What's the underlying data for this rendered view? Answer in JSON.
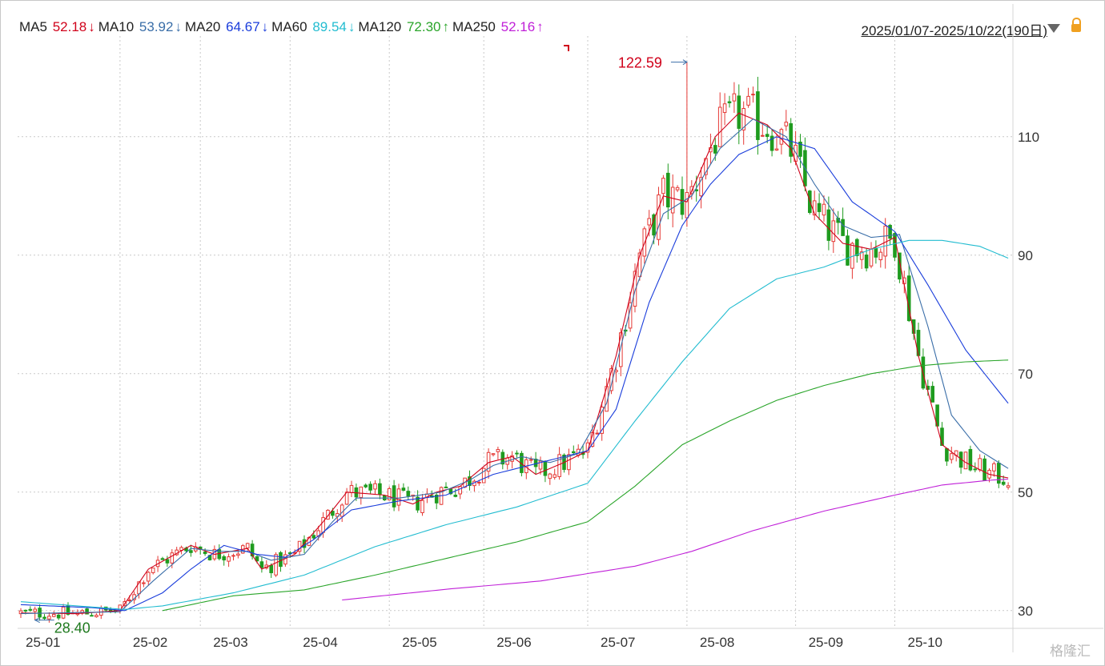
{
  "ma_legend": [
    {
      "label": "MA5",
      "value": "52.18",
      "arrow": "↓",
      "color": "#d0021b"
    },
    {
      "label": "MA10",
      "value": "53.92",
      "arrow": "↓",
      "color": "#3a6ea8"
    },
    {
      "label": "MA20",
      "value": "64.67",
      "arrow": "↓",
      "color": "#1a3ddb"
    },
    {
      "label": "MA60",
      "value": "89.54",
      "arrow": "↓",
      "color": "#22bcd0"
    },
    {
      "label": "MA120",
      "value": "72.30",
      "arrow": "↑",
      "color": "#2aa52a"
    },
    {
      "label": "MA250",
      "value": "52.16",
      "arrow": "↑",
      "color": "#c020d8"
    }
  ],
  "date_range": "2025/01/07-2025/10/22(190日)",
  "watermark": "格隆汇",
  "icons": {
    "dropdown": "triangle-down-icon",
    "lock": "lock-icon"
  },
  "chart_data": {
    "type": "candlestick",
    "ylim": [
      27,
      127
    ],
    "y_ticks": [
      30,
      50,
      70,
      90,
      110
    ],
    "x_ticks": [
      "25-01",
      "25-02",
      "25-03",
      "25-04",
      "25-05",
      "25-06",
      "25-07",
      "25-08",
      "25-09",
      "25-10"
    ],
    "annotations": {
      "max": "122.59",
      "min": "28.40"
    },
    "ma_lines": {
      "MA5": [
        [
          0,
          29.6
        ],
        [
          12,
          29.5
        ],
        [
          21,
          30
        ],
        [
          27,
          37
        ],
        [
          36,
          41
        ],
        [
          41,
          39.5
        ],
        [
          48,
          40.5
        ],
        [
          51,
          37
        ],
        [
          58,
          39.5
        ],
        [
          64,
          45
        ],
        [
          69,
          50
        ],
        [
          77,
          49.5
        ],
        [
          83,
          48
        ],
        [
          88,
          50
        ],
        [
          93,
          51
        ],
        [
          99,
          55
        ],
        [
          104,
          56
        ],
        [
          109,
          53
        ],
        [
          115,
          55
        ],
        [
          120,
          57
        ],
        [
          126,
          73
        ],
        [
          131,
          90
        ],
        [
          136,
          100
        ],
        [
          141,
          99
        ],
        [
          147,
          110
        ],
        [
          152,
          114
        ],
        [
          158,
          112
        ],
        [
          163,
          108
        ],
        [
          168,
          97
        ],
        [
          174,
          92
        ],
        [
          180,
          91
        ],
        [
          185,
          93
        ],
        [
          190,
          73
        ],
        [
          195,
          58
        ],
        [
          200,
          55
        ],
        [
          205,
          53
        ],
        [
          209,
          52.4
        ]
      ],
      "MA10": [
        [
          0,
          29.5
        ],
        [
          21,
          29.8
        ],
        [
          28,
          35
        ],
        [
          36,
          40.5
        ],
        [
          42,
          40
        ],
        [
          48,
          40
        ],
        [
          53,
          38.5
        ],
        [
          60,
          39.5
        ],
        [
          66,
          45
        ],
        [
          71,
          49
        ],
        [
          80,
          49
        ],
        [
          89,
          50
        ],
        [
          95,
          52
        ],
        [
          100,
          54.5
        ],
        [
          106,
          56
        ],
        [
          112,
          55
        ],
        [
          118,
          56.5
        ],
        [
          124,
          65
        ],
        [
          130,
          84
        ],
        [
          136,
          97
        ],
        [
          142,
          100
        ],
        [
          148,
          108
        ],
        [
          155,
          113
        ],
        [
          162,
          110
        ],
        [
          168,
          102
        ],
        [
          174,
          95
        ],
        [
          180,
          93
        ],
        [
          186,
          93.5
        ],
        [
          192,
          78
        ],
        [
          197,
          63
        ],
        [
          203,
          57
        ],
        [
          209,
          54
        ]
      ],
      "MA20": [
        [
          0,
          31
        ],
        [
          15,
          30.5
        ],
        [
          22,
          30
        ],
        [
          30,
          33
        ],
        [
          36,
          37
        ],
        [
          43,
          41
        ],
        [
          50,
          39.5
        ],
        [
          56,
          39
        ],
        [
          62,
          42
        ],
        [
          70,
          47
        ],
        [
          80,
          48.5
        ],
        [
          90,
          49.5
        ],
        [
          100,
          53
        ],
        [
          110,
          55
        ],
        [
          120,
          57
        ],
        [
          126,
          64
        ],
        [
          133,
          82
        ],
        [
          140,
          95
        ],
        [
          146,
          102
        ],
        [
          152,
          107
        ],
        [
          160,
          110
        ],
        [
          168,
          108
        ],
        [
          176,
          99
        ],
        [
          185,
          94
        ],
        [
          192,
          85
        ],
        [
          200,
          74
        ],
        [
          209,
          65
        ]
      ],
      "MA60": [
        [
          0,
          31.5
        ],
        [
          22,
          30.2
        ],
        [
          30,
          30.8
        ],
        [
          45,
          33
        ],
        [
          60,
          36
        ],
        [
          75,
          40.8
        ],
        [
          90,
          44.5
        ],
        [
          105,
          47.5
        ],
        [
          120,
          51.5
        ],
        [
          130,
          62
        ],
        [
          140,
          72
        ],
        [
          150,
          81
        ],
        [
          160,
          86
        ],
        [
          170,
          88
        ],
        [
          180,
          91
        ],
        [
          188,
          92.5
        ],
        [
          195,
          92.5
        ],
        [
          203,
          91.5
        ],
        [
          209,
          89.5
        ]
      ],
      "MA120": [
        [
          30,
          30
        ],
        [
          45,
          32.5
        ],
        [
          60,
          33.5
        ],
        [
          75,
          36
        ],
        [
          90,
          38.8
        ],
        [
          105,
          41.6
        ],
        [
          120,
          45
        ],
        [
          130,
          51
        ],
        [
          140,
          58
        ],
        [
          150,
          62
        ],
        [
          160,
          65.5
        ],
        [
          170,
          68
        ],
        [
          180,
          70
        ],
        [
          190,
          71.3
        ],
        [
          200,
          72
        ],
        [
          209,
          72.3
        ]
      ],
      "MA250": [
        [
          68,
          31.8
        ],
        [
          90,
          33.6
        ],
        [
          110,
          35
        ],
        [
          130,
          37.5
        ],
        [
          142,
          40
        ],
        [
          155,
          43.5
        ],
        [
          170,
          46.8
        ],
        [
          185,
          49.5
        ],
        [
          195,
          51.2
        ],
        [
          205,
          52
        ],
        [
          209,
          52.2
        ]
      ]
    }
  }
}
